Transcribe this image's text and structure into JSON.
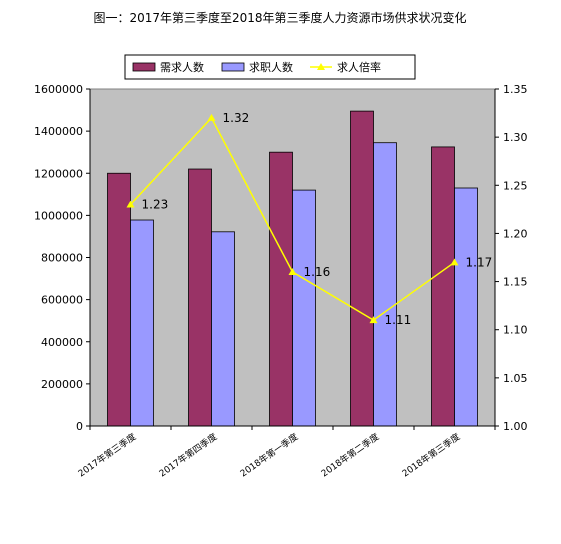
{
  "chart_data": {
    "type": "bar",
    "title": "图一：2017年第三季度至2018年第三季度人力资源市场供求状况变化",
    "categories": [
      "2017年第三季度",
      "2017年第四季度",
      "2018年第一季度",
      "2018年第二季度",
      "2018年第三季度"
    ],
    "series": [
      {
        "name": "需求人数",
        "type": "bar",
        "axis": "left",
        "color": "#993366",
        "values": [
          1200000,
          1220000,
          1300000,
          1495000,
          1325000
        ]
      },
      {
        "name": "求职人数",
        "type": "bar",
        "axis": "left",
        "color": "#9999ff",
        "values": [
          978000,
          922000,
          1120000,
          1345000,
          1130000
        ]
      },
      {
        "name": "求人倍率",
        "type": "line",
        "axis": "right",
        "color": "#ffff00",
        "values": [
          1.23,
          1.32,
          1.16,
          1.11,
          1.17
        ],
        "labels": [
          "1.23",
          "1.32",
          "1.16",
          "1.11",
          "1.17"
        ]
      }
    ],
    "y_left": {
      "min": 0,
      "max": 1600000,
      "step": 200000,
      "tick_labels": [
        "0",
        "200000",
        "400000",
        "600000",
        "800000",
        "1000000",
        "1200000",
        "1400000",
        "1600000"
      ]
    },
    "y_right": {
      "min": 1.0,
      "max": 1.35,
      "step": 0.05,
      "tick_labels": [
        "1.00",
        "1.05",
        "1.10",
        "1.15",
        "1.20",
        "1.25",
        "1.30",
        "1.35"
      ]
    },
    "legend_position": "top",
    "plot_background": "#c0c0c0",
    "grid": false
  }
}
